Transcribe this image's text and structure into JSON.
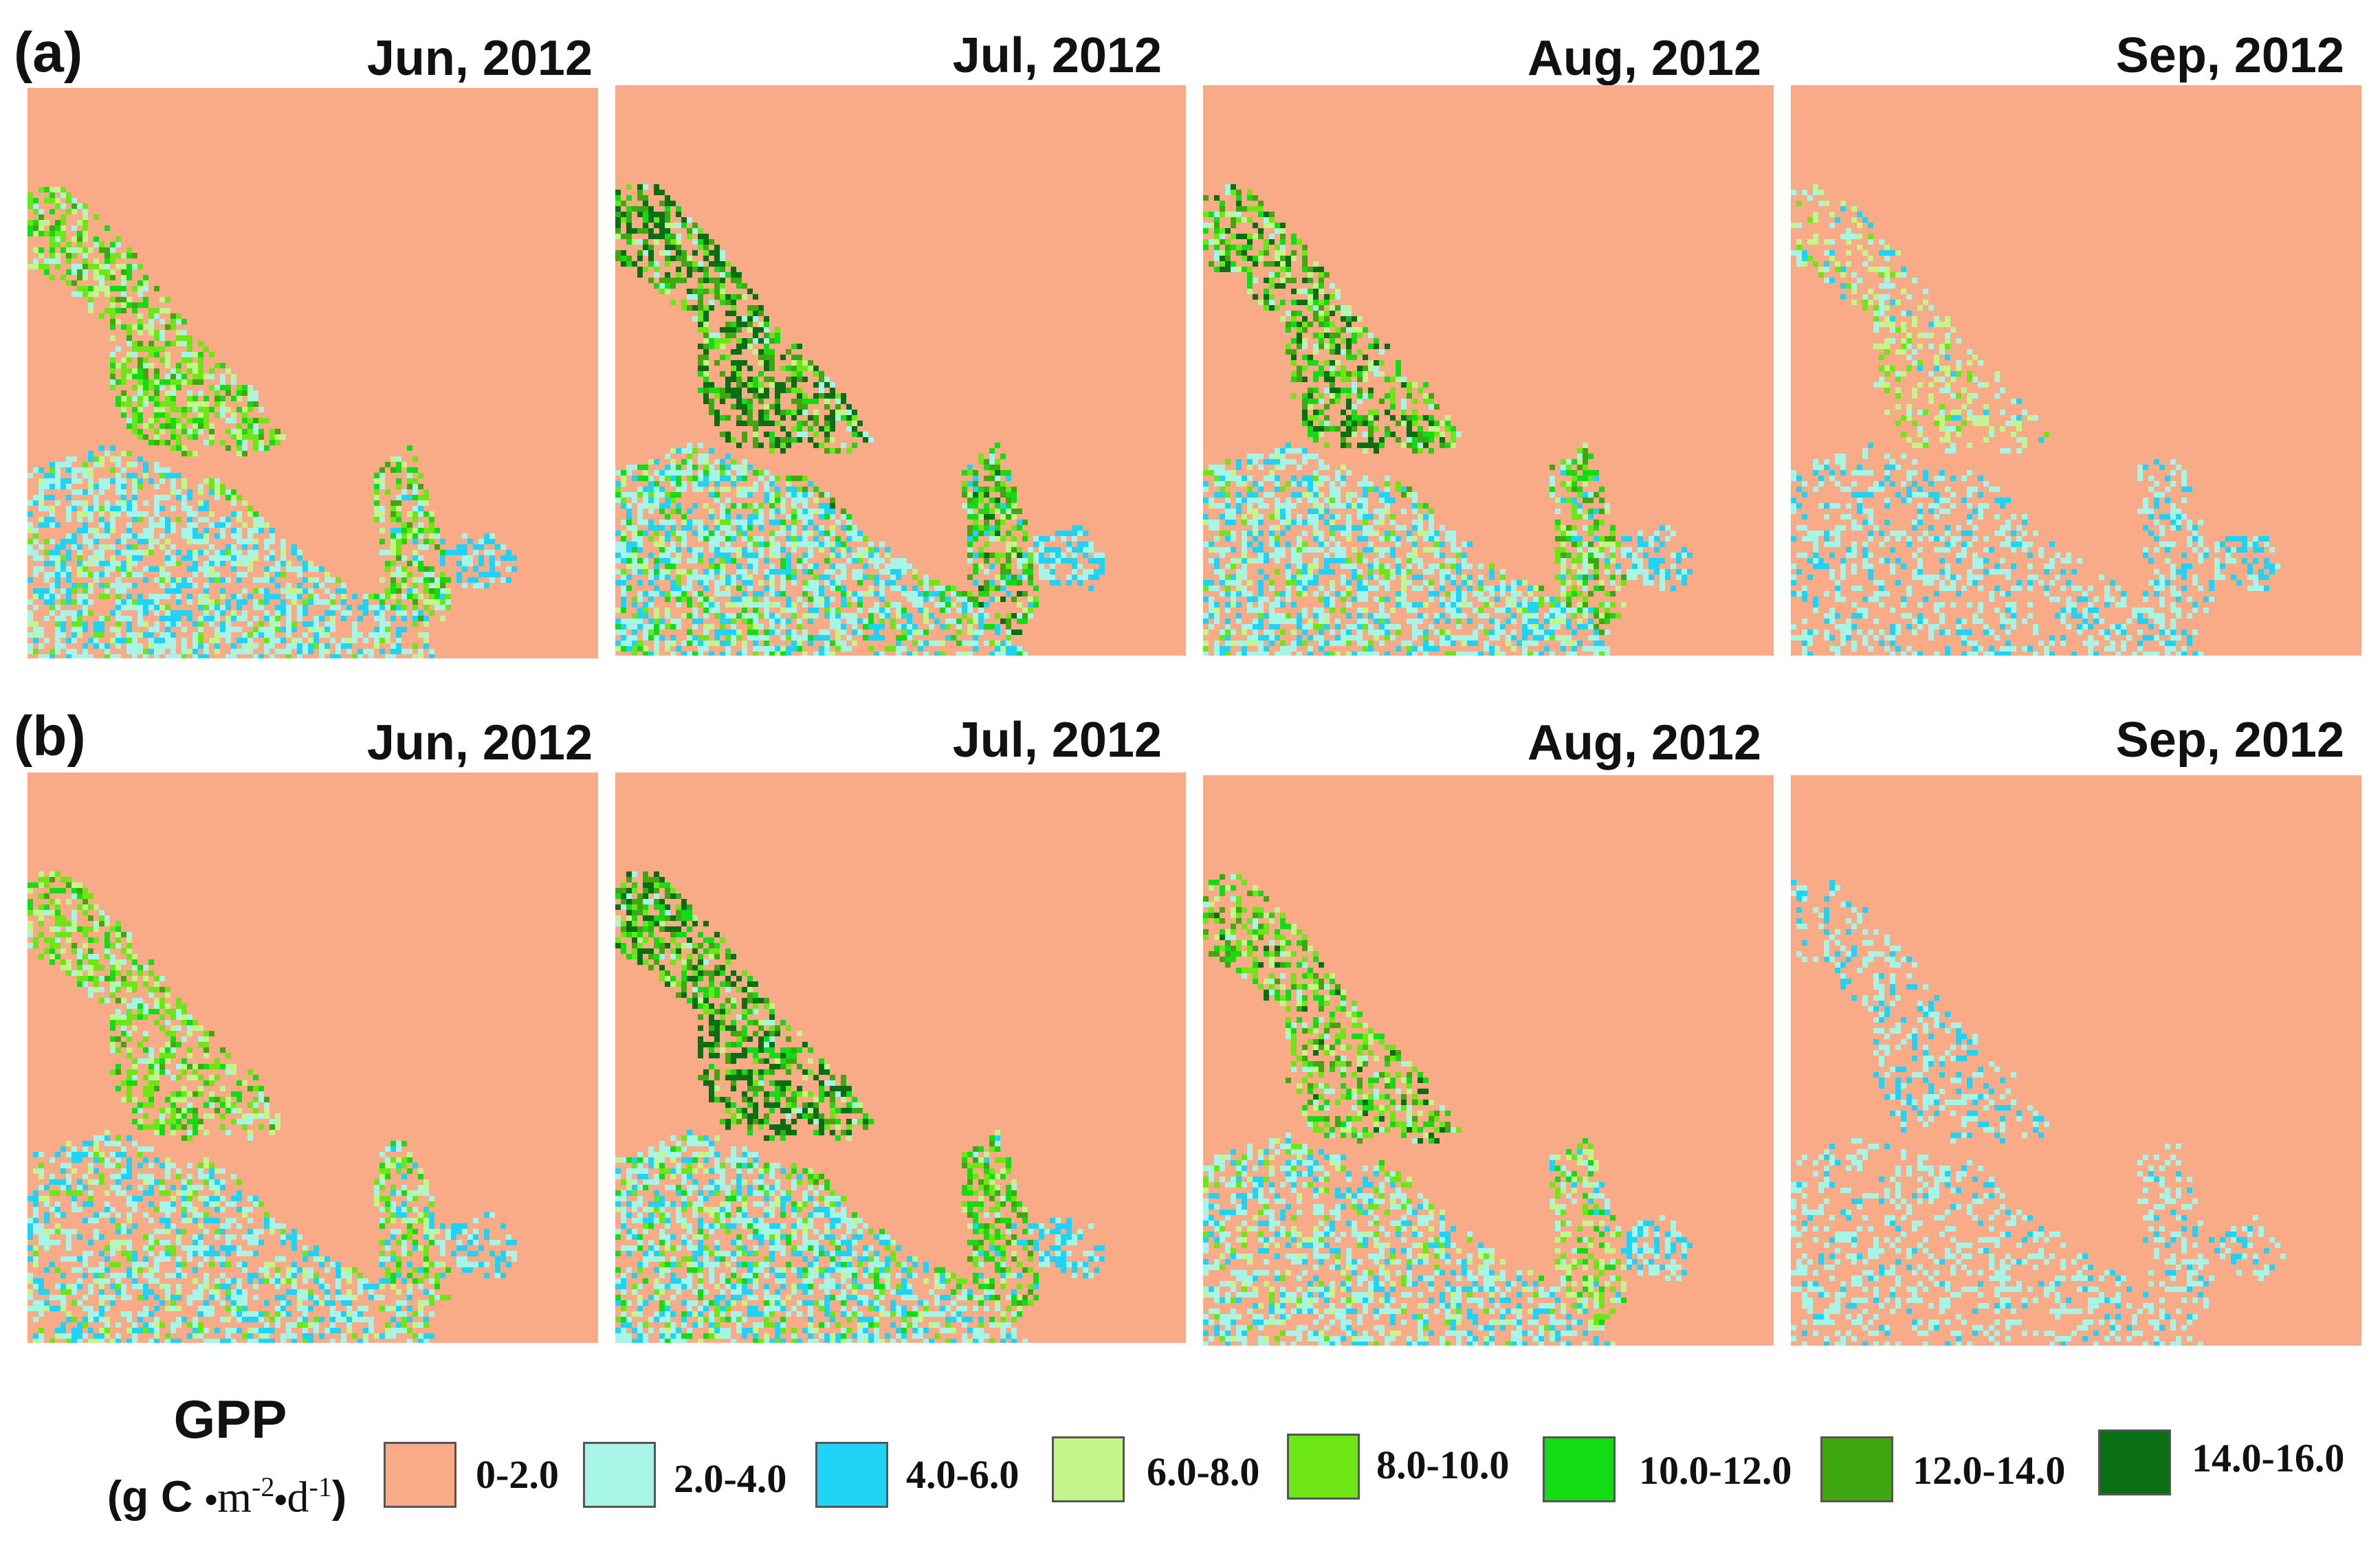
{
  "rows": [
    {
      "label": "(a)",
      "panels": [
        "Jun, 2012",
        "Jul, 2012",
        "Aug, 2012",
        "Sep, 2012"
      ]
    },
    {
      "label": "(b)",
      "panels": [
        "Jun, 2012",
        "Jul, 2012",
        "Aug, 2012",
        "Sep, 2012"
      ]
    }
  ],
  "legend": {
    "title": "GPP",
    "unit_prefix": "(g C ",
    "unit_m": "m",
    "unit_m_exp": "-2",
    "unit_d": "d",
    "unit_d_exp": "-1",
    "unit_suffix": ")",
    "unit_dot": "•",
    "classes": [
      {
        "label": "0-2.0",
        "color": "#F8AB86"
      },
      {
        "label": "2.0-4.0",
        "color": "#A6F5E6"
      },
      {
        "label": "4.0-6.0",
        "color": "#1ED3F5"
      },
      {
        "label": "6.0-8.0",
        "color": "#C2F58A"
      },
      {
        "label": "8.0-10.0",
        "color": "#6EE515"
      },
      {
        "label": "10.0-12.0",
        "color": "#14DC14"
      },
      {
        "label": "12.0-14.0",
        "color": "#3FA811"
      },
      {
        "label": "14.0-16.0",
        "color": "#0A6F14"
      }
    ]
  }
}
